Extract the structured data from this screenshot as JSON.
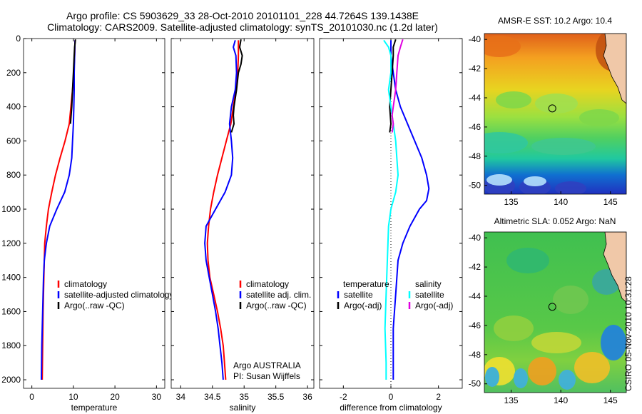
{
  "header": {
    "line1": "Argo profile: CS 5903629_33 28-Oct-2010 20101101_228 44.7264S 139.1438E",
    "line2": "Climatology: CARS2009. Satellite-adjusted climatology: synTS_20101030.nc (1.2d later)"
  },
  "credit": "CSIRO 05-Nov-2010 10:31:28",
  "colors": {
    "red": "#ff0000",
    "blue": "#0000ff",
    "black": "#000000",
    "cyan": "#00ffff",
    "magenta": "#e000e0"
  },
  "chart_data": [
    {
      "type": "line",
      "id": "temperature",
      "xlabel": "temperature",
      "xlim": [
        -2,
        32
      ],
      "ylim": [
        2050,
        0
      ],
      "xticks": [
        0,
        10,
        20,
        30
      ],
      "yticks": [
        0,
        200,
        400,
        600,
        800,
        1000,
        1200,
        1400,
        1600,
        1800,
        2000
      ],
      "legend_entries": [
        "climatology",
        "satellite-adjusted climatology",
        "Argo(..raw -QC)"
      ],
      "series": [
        {
          "name": "climatology",
          "color": "red",
          "points": [
            [
              10.4,
              10
            ],
            [
              10.3,
              100
            ],
            [
              10.1,
              200
            ],
            [
              9.8,
              300
            ],
            [
              9.4,
              400
            ],
            [
              9.0,
              500
            ],
            [
              8.0,
              600
            ],
            [
              6.8,
              700
            ],
            [
              5.7,
              800
            ],
            [
              4.8,
              900
            ],
            [
              4.0,
              1000
            ],
            [
              3.5,
              1100
            ],
            [
              3.1,
              1200
            ],
            [
              2.9,
              1400
            ],
            [
              2.7,
              1600
            ],
            [
              2.6,
              1800
            ],
            [
              2.5,
              2000
            ]
          ]
        },
        {
          "name": "satellite-adjusted climatology",
          "color": "blue",
          "points": [
            [
              10.4,
              10
            ],
            [
              10.3,
              100
            ],
            [
              10.2,
              200
            ],
            [
              10.2,
              300
            ],
            [
              10.1,
              400
            ],
            [
              10.0,
              500
            ],
            [
              9.8,
              600
            ],
            [
              9.6,
              700
            ],
            [
              9.0,
              800
            ],
            [
              7.9,
              900
            ],
            [
              6.0,
              1000
            ],
            [
              4.3,
              1100
            ],
            [
              3.5,
              1200
            ],
            [
              3.0,
              1300
            ],
            [
              2.8,
              1400
            ],
            [
              2.6,
              1600
            ],
            [
              2.4,
              1800
            ],
            [
              2.3,
              2000
            ]
          ]
        },
        {
          "name": "Argo(..raw -QC)",
          "color": "black",
          "points": [
            [
              10.5,
              5
            ],
            [
              10.3,
              50
            ],
            [
              10.2,
              100
            ],
            [
              10.0,
              200
            ],
            [
              9.8,
              300
            ],
            [
              9.6,
              400
            ],
            [
              9.3,
              500
            ]
          ]
        }
      ]
    },
    {
      "type": "line",
      "id": "salinity",
      "xlabel": "salinity",
      "xlim": [
        33.85,
        36.1
      ],
      "ylim": [
        2050,
        0
      ],
      "xticks": [
        34,
        34.5,
        35,
        35.5,
        36
      ],
      "legend_entries": [
        "climatology",
        "satellite adj. clim.",
        "Argo(..raw -QC)"
      ],
      "annotation": [
        "Argo AUSTRALIA",
        "PI: Susan Wijffels"
      ],
      "series": [
        {
          "name": "climatology",
          "color": "red",
          "points": [
            [
              34.91,
              10
            ],
            [
              34.91,
              100
            ],
            [
              34.9,
              200
            ],
            [
              34.87,
              300
            ],
            [
              34.83,
              400
            ],
            [
              34.79,
              500
            ],
            [
              34.72,
              600
            ],
            [
              34.65,
              700
            ],
            [
              34.58,
              800
            ],
            [
              34.52,
              900
            ],
            [
              34.47,
              1000
            ],
            [
              34.44,
              1100
            ],
            [
              34.42,
              1200
            ],
            [
              34.43,
              1300
            ],
            [
              34.46,
              1400
            ],
            [
              34.52,
              1500
            ],
            [
              34.58,
              1600
            ],
            [
              34.63,
              1700
            ],
            [
              34.67,
              1800
            ],
            [
              34.69,
              1900
            ],
            [
              34.71,
              2000
            ]
          ]
        },
        {
          "name": "satellite adj. clim.",
          "color": "blue",
          "points": [
            [
              34.86,
              10
            ],
            [
              34.83,
              50
            ],
            [
              34.87,
              100
            ],
            [
              34.88,
              200
            ],
            [
              34.86,
              300
            ],
            [
              34.8,
              400
            ],
            [
              34.77,
              500
            ],
            [
              34.8,
              600
            ],
            [
              34.82,
              700
            ],
            [
              34.8,
              800
            ],
            [
              34.7,
              900
            ],
            [
              34.55,
              1000
            ],
            [
              34.4,
              1100
            ],
            [
              34.38,
              1200
            ],
            [
              34.4,
              1300
            ],
            [
              34.45,
              1400
            ],
            [
              34.5,
              1500
            ],
            [
              34.55,
              1600
            ],
            [
              34.59,
              1700
            ],
            [
              34.62,
              1800
            ],
            [
              34.65,
              1900
            ],
            [
              34.67,
              2000
            ]
          ]
        },
        {
          "name": "Argo(..raw -QC)",
          "color": "black",
          "points": [
            [
              34.95,
              5
            ],
            [
              34.93,
              50
            ],
            [
              34.97,
              100
            ],
            [
              34.95,
              150
            ],
            [
              34.91,
              200
            ],
            [
              34.88,
              300
            ],
            [
              34.84,
              400
            ],
            [
              34.83,
              450
            ],
            [
              34.84,
              500
            ],
            [
              34.8,
              550
            ]
          ]
        }
      ]
    },
    {
      "type": "line",
      "id": "difference",
      "xlabel": "difference from climatology",
      "xlim": [
        -3,
        3
      ],
      "ylim": [
        2050,
        0
      ],
      "xticks": [
        -2,
        0,
        2
      ],
      "zero_line": true,
      "legend_left": {
        "heading": "temperature",
        "entries": [
          "satellite",
          "Argo(-adj)"
        ]
      },
      "legend_right": {
        "heading": "salinity",
        "entries": [
          "satellite",
          "Argo(-adj)"
        ]
      },
      "series": [
        {
          "name": "temperature satellite",
          "color": "blue",
          "points": [
            [
              0.0,
              10
            ],
            [
              0.0,
              100
            ],
            [
              0.1,
              200
            ],
            [
              0.2,
              300
            ],
            [
              0.4,
              400
            ],
            [
              0.7,
              500
            ],
            [
              1.0,
              600
            ],
            [
              1.3,
              700
            ],
            [
              1.5,
              800
            ],
            [
              1.6,
              880
            ],
            [
              1.5,
              950
            ],
            [
              1.2,
              1000
            ],
            [
              0.8,
              1100
            ],
            [
              0.5,
              1200
            ],
            [
              0.3,
              1300
            ],
            [
              0.2,
              1500
            ],
            [
              0.1,
              1700
            ],
            [
              0.1,
              2000
            ]
          ]
        },
        {
          "name": "temperature Argo(-adj)",
          "color": "black",
          "points": [
            [
              0.2,
              5
            ],
            [
              0.1,
              50
            ],
            [
              0.1,
              100
            ],
            [
              0.05,
              200
            ],
            [
              0.0,
              300
            ],
            [
              -0.05,
              400
            ],
            [
              0.0,
              500
            ],
            [
              -0.05,
              550
            ]
          ]
        },
        {
          "name": "salinity satellite",
          "color": "cyan",
          "points": [
            [
              -0.3,
              10
            ],
            [
              -0.1,
              50
            ],
            [
              0.0,
              100
            ],
            [
              0.0,
              200
            ],
            [
              -0.1,
              300
            ],
            [
              0.0,
              400
            ],
            [
              0.1,
              500
            ],
            [
              0.2,
              600
            ],
            [
              0.25,
              700
            ],
            [
              0.3,
              800
            ],
            [
              0.2,
              900
            ],
            [
              0.0,
              1000
            ],
            [
              -0.1,
              1100
            ],
            [
              -0.15,
              1300
            ],
            [
              -0.2,
              1500
            ],
            [
              -0.25,
              1700
            ],
            [
              -0.2,
              1900
            ],
            [
              -0.2,
              2000
            ]
          ]
        },
        {
          "name": "salinity Argo(-adj)",
          "color": "magenta",
          "points": [
            [
              0.5,
              5
            ],
            [
              0.4,
              50
            ],
            [
              0.3,
              100
            ],
            [
              0.25,
              200
            ],
            [
              0.2,
              300
            ],
            [
              0.1,
              400
            ],
            [
              0.05,
              450
            ],
            [
              0.1,
              500
            ],
            [
              0.05,
              550
            ]
          ]
        }
      ]
    },
    {
      "type": "heatmap",
      "id": "sst_map",
      "title": "AMSR-E SST: 10.2 Argo: 10.4",
      "xlim": [
        132.3,
        146.6
      ],
      "ylim": [
        -50.6,
        -39.6
      ],
      "xticks": [
        135,
        140,
        145
      ],
      "yticks": [
        -40,
        -42,
        -44,
        -46,
        -48,
        -50
      ],
      "marker": [
        139.1438,
        -44.7264
      ]
    },
    {
      "type": "heatmap",
      "id": "sla_map",
      "title": "Altimetric SLA: 0.052 Argo: NaN",
      "xlim": [
        132.3,
        146.6
      ],
      "ylim": [
        -50.6,
        -39.6
      ],
      "xticks": [
        135,
        140,
        145
      ],
      "yticks": [
        -40,
        -42,
        -44,
        -46,
        -48,
        -50
      ],
      "marker": [
        139.1438,
        -44.7264
      ]
    }
  ]
}
